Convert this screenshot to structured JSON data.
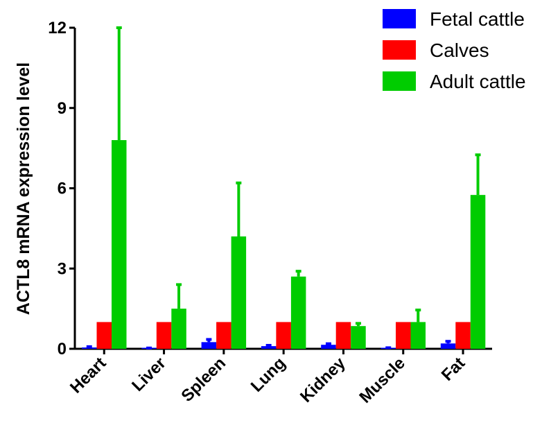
{
  "chart_data": {
    "type": "bar",
    "title": "",
    "xlabel": "",
    "ylabel": "ACTL8 mRNA expression level",
    "ylim": [
      0,
      12
    ],
    "yticks": [
      0,
      3,
      6,
      9,
      12
    ],
    "categories": [
      "Heart",
      "Liver",
      "Spleen",
      "Lung",
      "Kidney",
      "Muscle",
      "Fat"
    ],
    "series": [
      {
        "name": "Fetal cattle",
        "color": "#0000ff",
        "values": [
          0.05,
          0.02,
          0.25,
          0.1,
          0.15,
          0.03,
          0.2
        ],
        "errors": [
          0.03,
          0.01,
          0.1,
          0.03,
          0.04,
          0.01,
          0.08
        ]
      },
      {
        "name": "Calves",
        "color": "#ff0000",
        "values": [
          1.0,
          1.0,
          1.0,
          1.0,
          1.0,
          1.0,
          1.0
        ],
        "errors": [
          0,
          0,
          0,
          0,
          0,
          0,
          0
        ]
      },
      {
        "name": "Adult cattle",
        "color": "#00cc00",
        "values": [
          7.8,
          1.5,
          4.2,
          2.7,
          0.85,
          1.0,
          5.75
        ],
        "errors": [
          4.2,
          0.9,
          2.0,
          0.2,
          0.1,
          0.45,
          1.5
        ]
      }
    ],
    "legend_position": "top-right",
    "grid": false
  }
}
